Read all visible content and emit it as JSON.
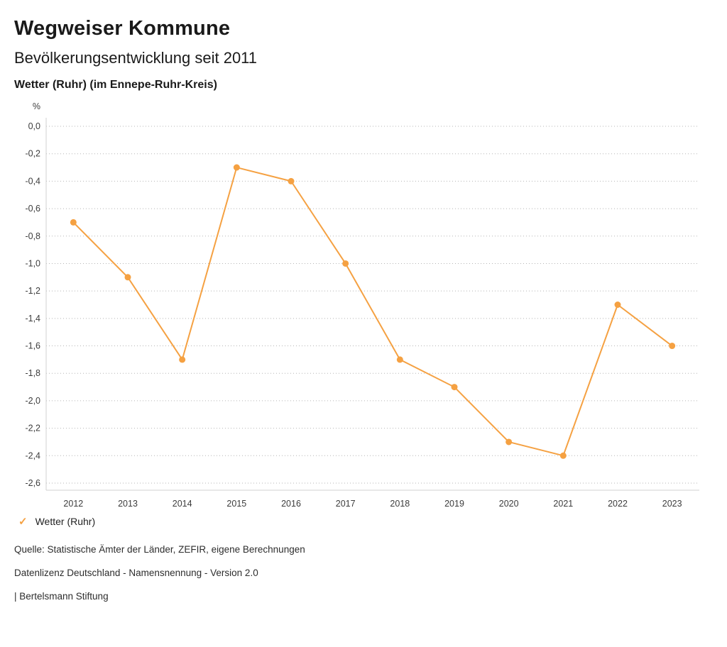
{
  "header": {
    "title": "Wegweiser Kommune",
    "subtitle": "Bevölkerungsentwicklung seit 2011",
    "location": "Wetter (Ruhr) (im Ennepe-Ruhr-Kreis)"
  },
  "chart_data": {
    "type": "line",
    "title": "Bevölkerungsentwicklung seit 2011",
    "unit": "%",
    "categories": [
      "2012",
      "2013",
      "2014",
      "2015",
      "2016",
      "2017",
      "2018",
      "2019",
      "2020",
      "2021",
      "2022",
      "2023"
    ],
    "series": [
      {
        "name": "Wetter (Ruhr)",
        "values": [
          -0.7,
          -1.1,
          -1.7,
          -0.3,
          -0.4,
          -1.0,
          -1.7,
          -1.9,
          -2.3,
          -2.4,
          -1.3,
          -1.6
        ]
      }
    ],
    "ylim": [
      -2.6,
      0.0
    ],
    "ytick_step": 0.2,
    "grid": true,
    "grid_style": "dotted",
    "line_color": "#F5A142",
    "legend_position": "bottom",
    "decimal_separator": ","
  },
  "legend": {
    "check_icon": "✓",
    "label": "Wetter (Ruhr)"
  },
  "footer": {
    "source": "Quelle: Statistische Ämter der Länder, ZEFIR, eigene Berechnungen",
    "license": "Datenlizenz Deutschland - Namensnennung - Version 2.0",
    "attribution": "| Bertelsmann Stiftung"
  }
}
